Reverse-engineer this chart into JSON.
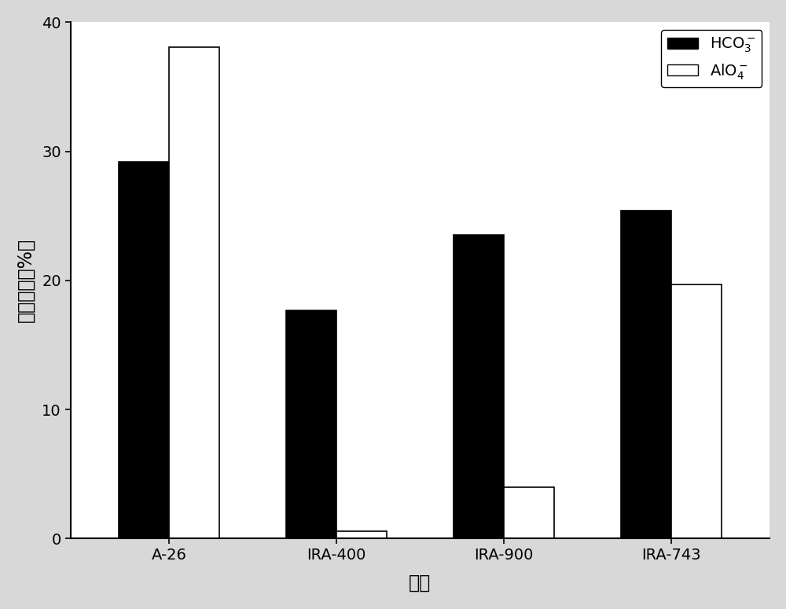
{
  "categories": [
    "A-26",
    "IRA-400",
    "IRA-900",
    "IRA-743"
  ],
  "hco3_values": [
    29.2,
    17.7,
    23.5,
    25.4
  ],
  "aio4_values": [
    38.1,
    0.55,
    4.0,
    19.7
  ],
  "bar_colors": [
    "black",
    "white"
  ],
  "bar_edgecolors": [
    "black",
    "black"
  ],
  "ylabel": "果糖产率（%）",
  "xlabel": "树脂",
  "ylim": [
    0,
    40
  ],
  "yticks": [
    0,
    10,
    20,
    30,
    40
  ],
  "bar_width": 0.3,
  "figure_background": "#d8d8d8",
  "axes_background": "#ffffff",
  "tick_fontsize": 14,
  "label_fontsize": 17,
  "legend_fontsize": 14
}
